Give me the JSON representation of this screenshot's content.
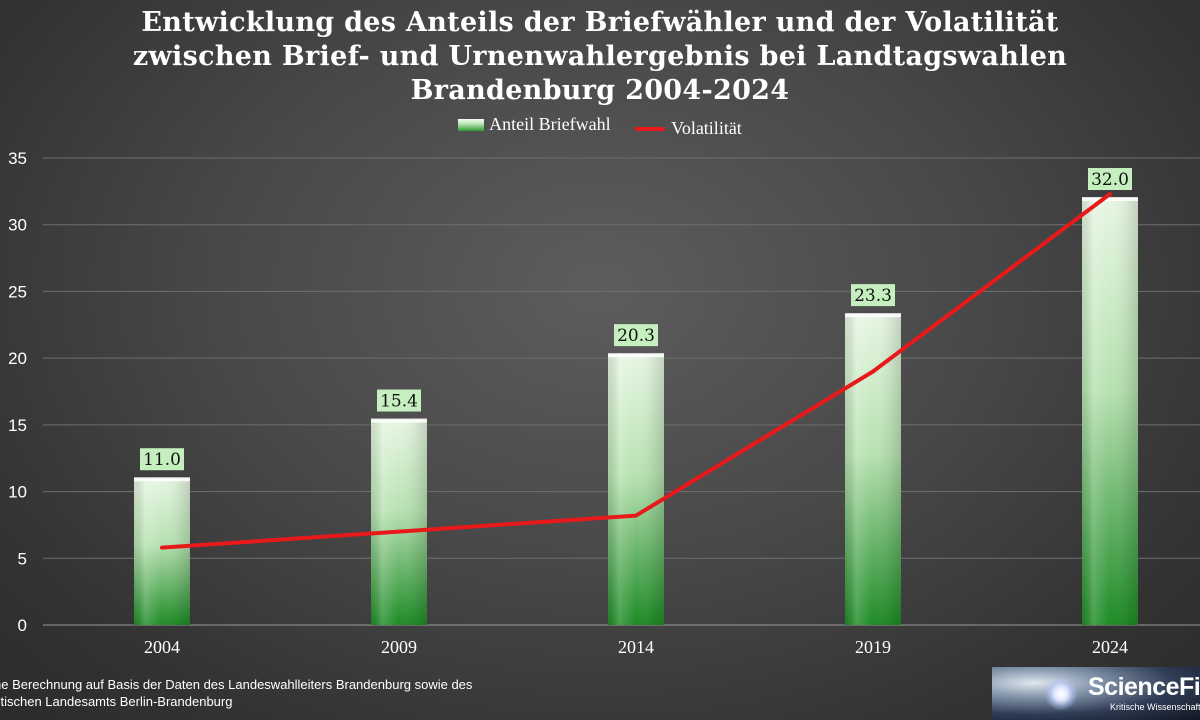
{
  "title_lines": [
    "Entwicklung des Anteils der Briefwähler und der Volatilität",
    "zwischen Brief- und Urnenwahlergebnis bei Landtagswahlen",
    "Brandenburg 2004-2024"
  ],
  "source_lines": [
    "ne Berechnung auf Basis der Daten des Landeswahlleiters Brandenburg sowie des",
    "stischen Landesamts Berlin-Brandenburg"
  ],
  "logo": {
    "name": "ScienceFiles",
    "tagline": "Kritische Wissenschaft"
  },
  "colors": {
    "line": "#e8191b",
    "bar_top": "#e3f5df",
    "bar_bottom": "#1f8a26",
    "label_bg": "#c6efc0"
  },
  "chart_data": {
    "type": "bar",
    "title": "Entwicklung des Anteils der Briefwähler und der Volatilität zwischen Brief- und Urnenwahlergebnis bei Landtagswahlen Brandenburg 2004-2024",
    "categories": [
      "2004",
      "2009",
      "2014",
      "2019",
      "2024"
    ],
    "series": [
      {
        "name": "Anteil Briefwahl",
        "type": "bar",
        "values": [
          11.0,
          15.4,
          20.3,
          23.3,
          32.0
        ],
        "labels": [
          "11.0",
          "15.4",
          "20.3",
          "23.3",
          "32.0"
        ]
      },
      {
        "name": "Volatilität",
        "type": "line",
        "values": [
          5.8,
          7.0,
          8.2,
          19.0,
          32.3
        ]
      }
    ],
    "xlabel": "",
    "ylabel": "",
    "ylim": [
      0,
      35
    ],
    "yticks": [
      0,
      5,
      10,
      15,
      20,
      25,
      30,
      35
    ],
    "grid": true,
    "legend": "top"
  }
}
